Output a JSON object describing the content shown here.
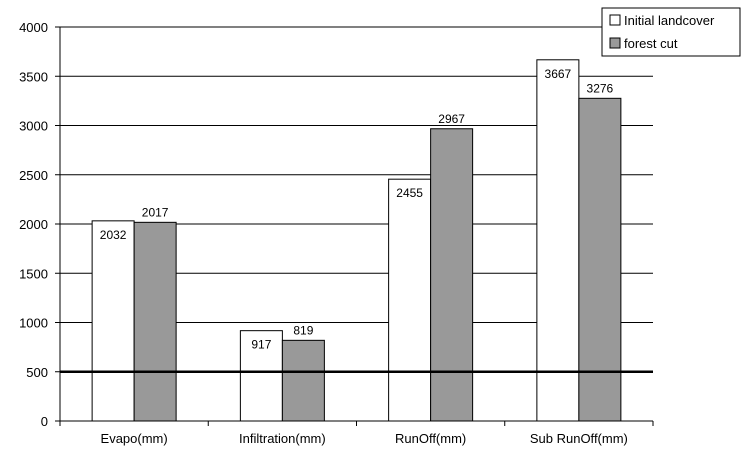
{
  "chart_data": {
    "type": "bar",
    "categories": [
      "Evapo(mm)",
      "Infiltration(mm)",
      "RunOff(mm)",
      "Sub RunOff(mm)"
    ],
    "series": [
      {
        "name": "Initial landcover",
        "values": [
          2032,
          917,
          2455,
          3667
        ],
        "color": "#ffffff"
      },
      {
        "name": "forest cut",
        "values": [
          2017,
          819,
          2967,
          3276
        ],
        "color": "#999999"
      }
    ],
    "yticks": [
      "0",
      "500",
      "1000",
      "1500",
      "2000",
      "2500",
      "3000",
      "3500",
      "4000"
    ],
    "ylim": [
      0,
      4000
    ],
    "grid": true,
    "reference_line": 500,
    "legend_position": "top-right"
  }
}
